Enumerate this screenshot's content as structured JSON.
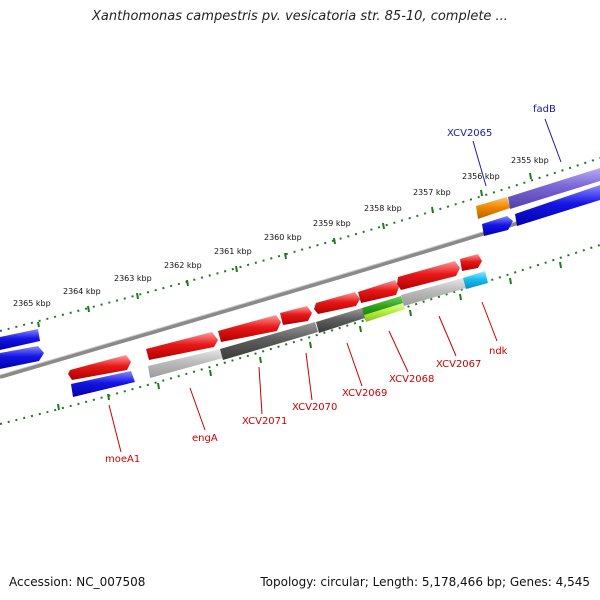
{
  "title": "Xanthomonas campestris pv. vesicatoria str. 85-10, complete ...",
  "footer": {
    "accession": "Accession: NC_007508",
    "summary": "Topology: circular; Length: 5,178,466 bp; Genes: 4,545"
  },
  "colors": {
    "red": "#e01010",
    "blue": "#1010e0",
    "dark_gray": "#5a5a5a",
    "light_gray": "#b8b8b8",
    "green": "#2e9e1a",
    "light_green": "#b6f03c",
    "orange": "#f08a00",
    "purple": "#7a66d6",
    "cyan": "#18c0f0",
    "backbone": "#808080",
    "tick": "#1f7a1f"
  },
  "scale_labels": [
    "2365 kbp",
    "2364 kbp",
    "2363 kbp",
    "2362 kbp",
    "2361 kbp",
    "2360 kbp",
    "2359 kbp",
    "2358 kbp",
    "2357 kbp",
    "2356 kbp",
    "2355 kbp"
  ],
  "gene_labels": {
    "moeA1": "moeA1",
    "engA": "engA",
    "xcv2071": "XCV2071",
    "xcv2070": "XCV2070",
    "xcv2069": "XCV2069",
    "xcv2068": "XCV2068",
    "xcv2067": "XCV2067",
    "ndk": "ndk",
    "xcv2065": "XCV2065",
    "fadB": "fadB"
  }
}
